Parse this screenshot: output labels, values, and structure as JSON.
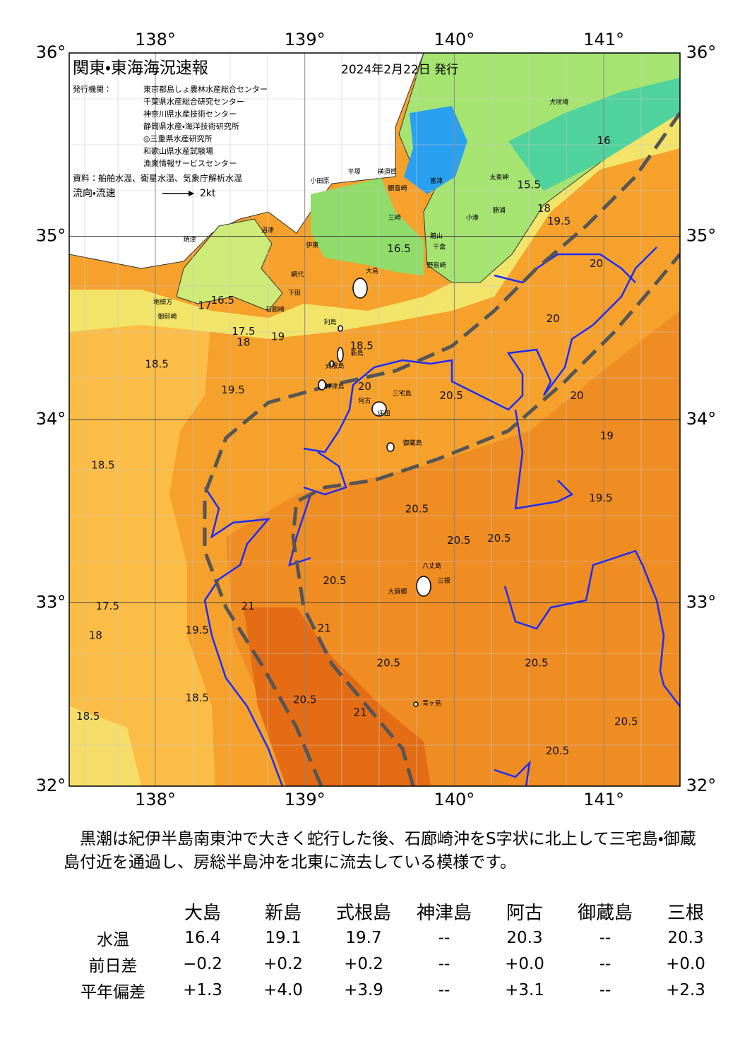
{
  "map": {
    "title": "関東・東海海況速報",
    "date": "2024年2月22日 発行",
    "agencies_label": "発行機関：",
    "agencies": [
      "東京都島しょ農林水産総合センター",
      "千葉県水産総合研究センター",
      "神奈川県水産技術センター",
      "静岡県水産・海洋技術研究所",
      "◎三重県水産研究所",
      "和歌山県水産試験場",
      "漁業情報サービスセンター"
    ],
    "source": "資料：船舶水温、衛星水温、気象庁解析水温",
    "legend_label": "流向・流速",
    "legend_scale": "2kt",
    "lon_ticks": [
      {
        "value": 138,
        "label": "138°"
      },
      {
        "value": 139,
        "label": "139°"
      },
      {
        "value": 140,
        "label": "140°"
      },
      {
        "value": 141,
        "label": "141°"
      }
    ],
    "lat_ticks": [
      {
        "value": 36,
        "label": "36°"
      },
      {
        "value": 35,
        "label": "35°"
      },
      {
        "value": 34,
        "label": "34°"
      },
      {
        "value": 33,
        "label": "33°"
      },
      {
        "value": 32,
        "label": "32°"
      }
    ],
    "places": [
      {
        "label": "大島",
        "lon": 139.45,
        "lat": 34.81
      },
      {
        "label": "利島",
        "lon": 139.17,
        "lat": 34.53
      },
      {
        "label": "新島",
        "lon": 139.35,
        "lat": 34.36
      },
      {
        "label": "式根島",
        "lon": 139.2,
        "lat": 34.29
      },
      {
        "label": "神津島",
        "lon": 139.2,
        "lat": 34.18
      },
      {
        "label": "三宅島",
        "lon": 139.65,
        "lat": 34.14
      },
      {
        "label": "阿古",
        "lon": 139.4,
        "lat": 34.1
      },
      {
        "label": "坪田",
        "lon": 139.53,
        "lat": 34.03
      },
      {
        "label": "御蔵島",
        "lon": 139.72,
        "lat": 33.87
      },
      {
        "label": "八丈島",
        "lon": 139.85,
        "lat": 33.2
      },
      {
        "label": "三根",
        "lon": 139.93,
        "lat": 33.12
      },
      {
        "label": "大賀郷",
        "lon": 139.62,
        "lat": 33.06
      },
      {
        "label": "青ヶ島",
        "lon": 139.85,
        "lat": 32.45
      },
      {
        "label": "下田",
        "lon": 138.93,
        "lat": 34.69
      },
      {
        "label": "石廊崎",
        "lon": 138.8,
        "lat": 34.6
      },
      {
        "label": "網代",
        "lon": 138.95,
        "lat": 34.79
      },
      {
        "label": "伊東",
        "lon": 139.05,
        "lat": 34.95
      },
      {
        "label": "沼津",
        "lon": 138.75,
        "lat": 35.03
      },
      {
        "label": "焼津",
        "lon": 138.23,
        "lat": 34.98
      },
      {
        "label": "地頭方",
        "lon": 138.05,
        "lat": 34.64
      },
      {
        "label": "御前崎",
        "lon": 138.08,
        "lat": 34.56
      },
      {
        "label": "小田原",
        "lon": 139.1,
        "lat": 35.3
      },
      {
        "label": "平塚",
        "lon": 139.33,
        "lat": 35.35
      },
      {
        "label": "横須賀",
        "lon": 139.55,
        "lat": 35.35
      },
      {
        "label": "観音崎",
        "lon": 139.62,
        "lat": 35.26
      },
      {
        "label": "三崎",
        "lon": 139.6,
        "lat": 35.1
      },
      {
        "label": "富津",
        "lon": 139.88,
        "lat": 35.3
      },
      {
        "label": "館山",
        "lon": 139.88,
        "lat": 35.0
      },
      {
        "label": "千倉",
        "lon": 139.9,
        "lat": 34.94
      },
      {
        "label": "野島崎",
        "lon": 139.88,
        "lat": 34.84
      },
      {
        "label": "小湊",
        "lon": 140.12,
        "lat": 35.1
      },
      {
        "label": "勝浦",
        "lon": 140.3,
        "lat": 35.14
      },
      {
        "label": "太東岬",
        "lon": 140.3,
        "lat": 35.32
      },
      {
        "label": "犬吠埼",
        "lon": 140.7,
        "lat": 35.73
      }
    ],
    "contours": [
      {
        "value": 16.5,
        "lon": 139.63,
        "lat": 34.93
      },
      {
        "value": 16.5,
        "lon": 138.45,
        "lat": 34.65
      },
      {
        "value": 17,
        "lon": 138.33,
        "lat": 34.62
      },
      {
        "value": 17.5,
        "lon": 138.59,
        "lat": 34.48
      },
      {
        "value": 18,
        "lon": 138.59,
        "lat": 34.42
      },
      {
        "value": 18.5,
        "lon": 138.01,
        "lat": 34.3
      },
      {
        "value": 19.5,
        "lon": 138.52,
        "lat": 34.16
      },
      {
        "value": 19,
        "lon": 138.82,
        "lat": 34.45
      },
      {
        "value": 18.5,
        "lon": 139.38,
        "lat": 34.4
      },
      {
        "value": 20.5,
        "lon": 139.98,
        "lat": 34.13
      },
      {
        "value": 20,
        "lon": 139.4,
        "lat": 34.18
      },
      {
        "value": 20,
        "lon": 140.66,
        "lat": 34.55
      },
      {
        "value": 20,
        "lon": 140.82,
        "lat": 34.13
      },
      {
        "value": 20.5,
        "lon": 139.75,
        "lat": 33.51
      },
      {
        "value": 20.5,
        "lon": 140.03,
        "lat": 33.34
      },
      {
        "value": 20.5,
        "lon": 140.3,
        "lat": 33.35
      },
      {
        "value": 20.5,
        "lon": 139.2,
        "lat": 33.12
      },
      {
        "value": 21,
        "lon": 139.13,
        "lat": 32.86
      },
      {
        "value": 21,
        "lon": 138.62,
        "lat": 32.98
      },
      {
        "value": 20.5,
        "lon": 139.56,
        "lat": 32.67
      },
      {
        "value": 21,
        "lon": 139.37,
        "lat": 32.4
      },
      {
        "value": 20.5,
        "lon": 139.0,
        "lat": 32.47
      },
      {
        "value": 20.5,
        "lon": 140.55,
        "lat": 32.67
      },
      {
        "value": 20.5,
        "lon": 140.69,
        "lat": 32.19
      },
      {
        "value": 20.5,
        "lon": 141.15,
        "lat": 32.35
      },
      {
        "value": 19.5,
        "lon": 140.98,
        "lat": 33.57
      },
      {
        "value": 19,
        "lon": 141.02,
        "lat": 33.91
      },
      {
        "value": 18.5,
        "lon": 137.65,
        "lat": 33.75
      },
      {
        "value": 17.5,
        "lon": 137.68,
        "lat": 32.98
      },
      {
        "value": 18,
        "lon": 137.6,
        "lat": 32.82
      },
      {
        "value": 19.5,
        "lon": 138.28,
        "lat": 32.85
      },
      {
        "value": 18.5,
        "lon": 138.28,
        "lat": 32.48
      },
      {
        "value": 18.5,
        "lon": 137.55,
        "lat": 32.38
      },
      {
        "value": 16,
        "lon": 141.0,
        "lat": 35.52
      },
      {
        "value": 15.5,
        "lon": 140.5,
        "lat": 35.28
      },
      {
        "value": 18,
        "lon": 140.6,
        "lat": 35.15
      },
      {
        "value": 19.5,
        "lon": 140.7,
        "lat": 35.08
      },
      {
        "value": 20,
        "lon": 140.95,
        "lat": 34.85
      }
    ]
  },
  "description": "　黒潮は紀伊半島南東沖で大きく蛇行した後、石廊崎沖をS字状に北上して三宅島・御蔵島付近を通過し、房総半島沖を北東に流去している模様です。",
  "table": {
    "columns": [
      "大島",
      "新島",
      "式根島",
      "神津島",
      "阿古",
      "御蔵島",
      "三根"
    ],
    "rows": [
      {
        "label": "水温",
        "values": [
          "16.4",
          "19.1",
          "19.7",
          "--",
          "20.3",
          "--",
          "20.3"
        ]
      },
      {
        "label": "前日差",
        "values": [
          "−0.2",
          "+0.2",
          "+0.2",
          "--",
          "+0.0",
          "--",
          "+0.0"
        ]
      },
      {
        "label": "平年偏差",
        "values": [
          "+1.3",
          "+4.0",
          "+3.9",
          "--",
          "+3.1",
          "--",
          "+2.3"
        ]
      }
    ]
  }
}
